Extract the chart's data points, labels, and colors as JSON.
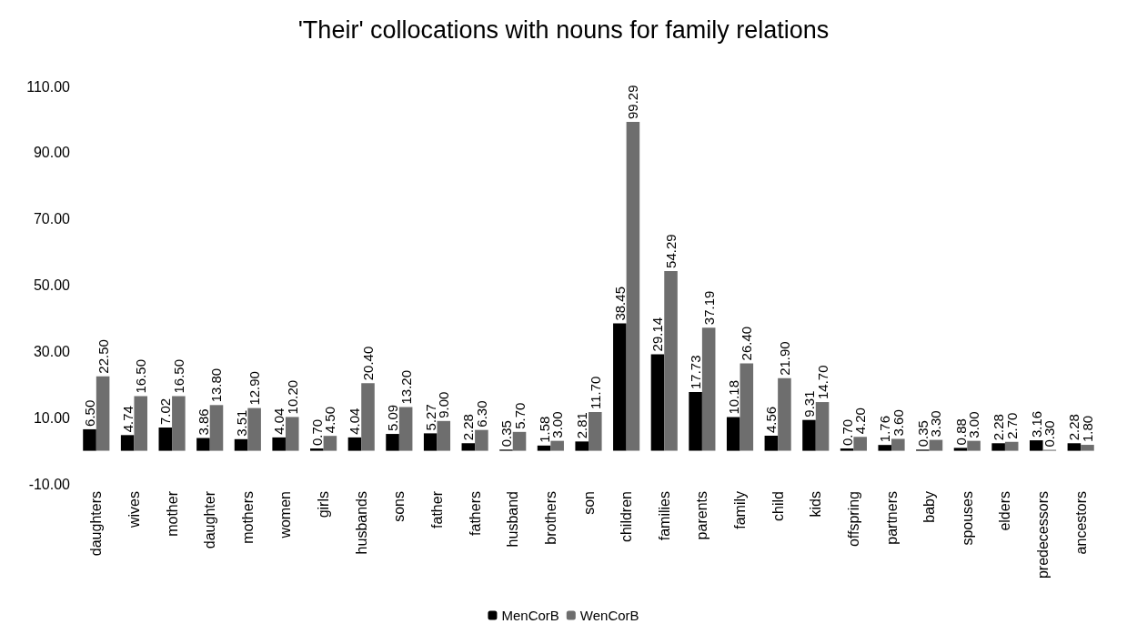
{
  "chart_data": {
    "type": "bar",
    "title": "'Their' collocations with nouns for family relations",
    "categories": [
      "daughters",
      "wives",
      "mother",
      "daughter",
      "mothers",
      "women",
      "girls",
      "husbands",
      "sons",
      "father",
      "fathers",
      "husband",
      "brothers",
      "son",
      "children",
      "families",
      "parents",
      "family",
      "child",
      "kids",
      "offspring",
      "partners",
      "baby",
      "spouses",
      "elders",
      "predecessors",
      "ancestors"
    ],
    "series": [
      {
        "name": "MenCorB",
        "color": "#000000",
        "values": [
          6.5,
          4.74,
          7.02,
          3.86,
          3.51,
          4.04,
          0.7,
          4.04,
          5.09,
          5.27,
          2.28,
          0.35,
          1.58,
          2.81,
          38.45,
          29.14,
          17.73,
          10.18,
          4.56,
          9.31,
          0.7,
          1.76,
          0.35,
          0.88,
          2.28,
          3.16,
          2.28
        ],
        "value_labels": [
          "6.50",
          "4.74",
          "7.02",
          "3.86",
          "3.51",
          "4.04",
          "0.70",
          "4.04",
          "5.09",
          "5.27",
          "2.28",
          "0.35",
          "1.58",
          "2.81",
          "38.45",
          "29.14",
          "17.73",
          "10.18",
          "4.56",
          "9.31",
          "0.70",
          "1.76",
          "0.35",
          "0.88",
          "2.28",
          "3.16",
          "2.28"
        ]
      },
      {
        "name": "WenCorB",
        "color": "#6e6e6e",
        "values": [
          22.5,
          16.5,
          16.5,
          13.8,
          12.9,
          10.2,
          4.5,
          20.4,
          13.2,
          9.0,
          6.3,
          5.7,
          3.0,
          11.7,
          99.29,
          54.29,
          37.19,
          26.4,
          21.9,
          14.7,
          4.2,
          3.6,
          3.3,
          3.0,
          2.7,
          0.3,
          1.8
        ],
        "value_labels": [
          "22.50",
          "16.50",
          "16.50",
          "13.80",
          "12.90",
          "10.20",
          "4.50",
          "20.40",
          "13.20",
          "9.00",
          "6.30",
          "5.70",
          "3.00",
          "11.70",
          "99.29",
          "54.29",
          "37.19",
          "26.40",
          "21.90",
          "14.70",
          "4.20",
          "3.60",
          "3.30",
          "3.00",
          "2.70",
          "0.30",
          "1.80"
        ]
      }
    ],
    "ylim": [
      -10,
      110
    ],
    "yticks": [
      {
        "value": -10,
        "label": "-10.00"
      },
      {
        "value": 10,
        "label": "10.00"
      },
      {
        "value": 30,
        "label": "30.00"
      },
      {
        "value": 50,
        "label": "50.00"
      },
      {
        "value": 70,
        "label": "70.00"
      },
      {
        "value": 90,
        "label": "90.00"
      },
      {
        "value": 110,
        "label": "110.00"
      }
    ],
    "grid": false,
    "legend": "bottom"
  }
}
